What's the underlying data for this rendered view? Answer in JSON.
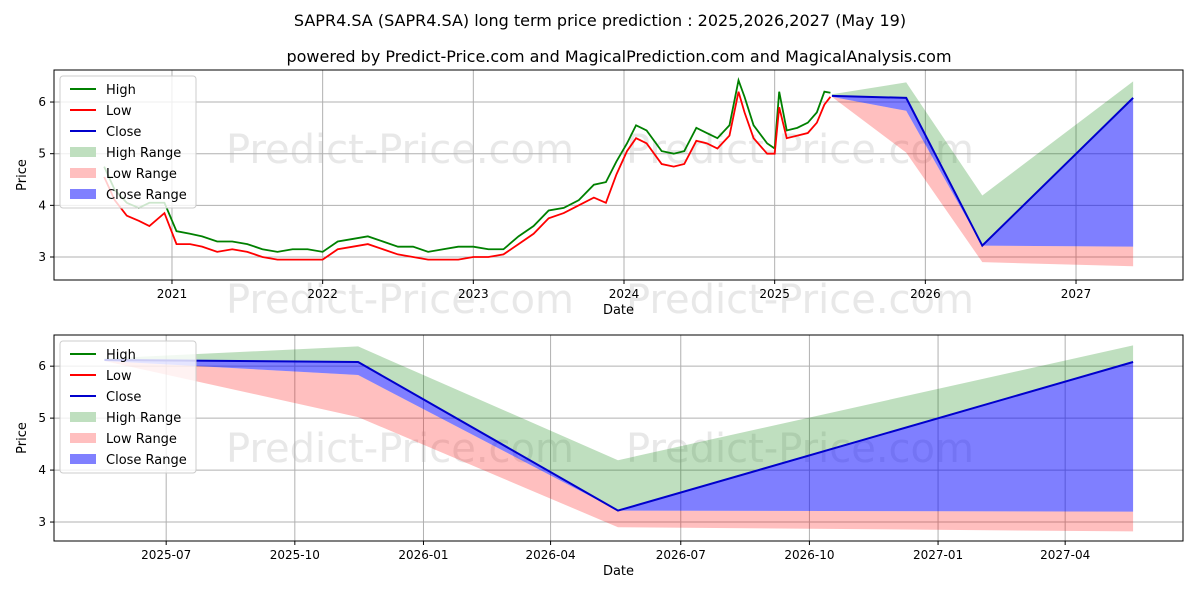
{
  "chart_data": [
    {
      "type": "line",
      "title": "SAPR4.SA (SAPR4.SA) long term price prediction : 2025,2026,2027 (May 19)",
      "subtitle": "powered by Predict-Price.com and MagicalPrediction.com and MagicalAnalysis.com",
      "xlabel": "Date",
      "ylabel": "Price",
      "xlim": [
        2020.217,
        2027.71
      ],
      "ylim": [
        2.555,
        6.62
      ],
      "xticks": [
        {
          "v": 2021,
          "label": "2021"
        },
        {
          "v": 2022,
          "label": "2022"
        },
        {
          "v": 2023,
          "label": "2023"
        },
        {
          "v": 2024,
          "label": "2024"
        },
        {
          "v": 2025,
          "label": "2025"
        },
        {
          "v": 2026,
          "label": "2026"
        },
        {
          "v": 2027,
          "label": "2027"
        }
      ],
      "yticks": [
        {
          "v": 3,
          "label": "3"
        },
        {
          "v": 4,
          "label": "4"
        },
        {
          "v": 5,
          "label": "5"
        },
        {
          "v": 6,
          "label": "6"
        }
      ],
      "grid": true,
      "legend": "top-left",
      "watermark": "Predict-Price.com"
    },
    {
      "type": "line",
      "xlabel": "Date",
      "ylabel": "Price",
      "xlim": [
        2025.282,
        2027.476
      ],
      "ylim": [
        2.635,
        6.6
      ],
      "xticks": [
        {
          "v": 2025.5,
          "label": "2025-07"
        },
        {
          "v": 2025.75,
          "label": "2025-10"
        },
        {
          "v": 2026.0,
          "label": "2026-01"
        },
        {
          "v": 2026.247,
          "label": "2026-04"
        },
        {
          "v": 2026.5,
          "label": "2026-07"
        },
        {
          "v": 2026.75,
          "label": "2026-10"
        },
        {
          "v": 2027.0,
          "label": "2027-01"
        },
        {
          "v": 2027.247,
          "label": "2027-04"
        }
      ],
      "yticks": [
        {
          "v": 3,
          "label": "3"
        },
        {
          "v": 4,
          "label": "4"
        },
        {
          "v": 5,
          "label": "5"
        },
        {
          "v": 6,
          "label": "6"
        }
      ],
      "grid": true,
      "legend": "top-left",
      "watermark": "Predict-Price.com"
    }
  ],
  "legend": [
    {
      "name": "High",
      "kind": "line",
      "color": "#008000"
    },
    {
      "name": "Low",
      "kind": "line",
      "color": "#ff0000"
    },
    {
      "name": "Close",
      "kind": "line",
      "color": "#0000cc"
    },
    {
      "name": "High Range",
      "kind": "patch",
      "color": "#bfdfbf"
    },
    {
      "name": "Low Range",
      "kind": "patch",
      "color": "#ffbfbf"
    },
    {
      "name": "Close Range",
      "kind": "patch",
      "color": "#8080ff"
    }
  ],
  "history": {
    "x": [
      2020.55,
      2020.62,
      2020.7,
      2020.78,
      2020.85,
      2020.95,
      2021.03,
      2021.12,
      2021.2,
      2021.3,
      2021.4,
      2021.5,
      2021.6,
      2021.7,
      2021.8,
      2021.9,
      2022.0,
      2022.1,
      2022.2,
      2022.3,
      2022.4,
      2022.5,
      2022.6,
      2022.7,
      2022.8,
      2022.9,
      2023.0,
      2023.1,
      2023.2,
      2023.3,
      2023.4,
      2023.5,
      2023.6,
      2023.7,
      2023.8,
      2023.88,
      2023.95,
      2024.02,
      2024.08,
      2024.15,
      2024.25,
      2024.33,
      2024.4,
      2024.48,
      2024.55,
      2024.62,
      2024.7,
      2024.76,
      2024.8,
      2024.86,
      2024.95,
      2025.0,
      2025.03,
      2025.08,
      2025.15,
      2025.22,
      2025.28,
      2025.33,
      2025.37
    ],
    "high": [
      4.75,
      4.3,
      4.05,
      3.95,
      4.05,
      4.05,
      3.5,
      3.45,
      3.4,
      3.3,
      3.3,
      3.25,
      3.15,
      3.1,
      3.15,
      3.15,
      3.1,
      3.3,
      3.35,
      3.4,
      3.3,
      3.2,
      3.2,
      3.1,
      3.15,
      3.2,
      3.2,
      3.15,
      3.15,
      3.4,
      3.6,
      3.9,
      3.95,
      4.1,
      4.4,
      4.45,
      4.85,
      5.2,
      5.55,
      5.45,
      5.05,
      5.0,
      5.05,
      5.5,
      5.4,
      5.3,
      5.55,
      6.42,
      6.1,
      5.55,
      5.2,
      5.1,
      6.2,
      5.45,
      5.5,
      5.6,
      5.8,
      6.2,
      6.18
    ],
    "low": [
      4.55,
      4.1,
      3.8,
      3.7,
      3.6,
      3.85,
      3.25,
      3.25,
      3.2,
      3.1,
      3.15,
      3.1,
      3.0,
      2.95,
      2.95,
      2.95,
      2.95,
      3.15,
      3.2,
      3.25,
      3.15,
      3.05,
      3.0,
      2.95,
      2.95,
      2.95,
      3.0,
      3.0,
      3.05,
      3.25,
      3.45,
      3.75,
      3.85,
      4.0,
      4.15,
      4.05,
      4.6,
      5.05,
      5.3,
      5.2,
      4.8,
      4.75,
      4.8,
      5.25,
      5.2,
      5.1,
      5.35,
      6.2,
      5.8,
      5.3,
      5.0,
      5.0,
      5.9,
      5.3,
      5.35,
      5.4,
      5.6,
      5.95,
      6.1
    ]
  },
  "forecast": {
    "x": [
      2025.38,
      2025.873,
      2026.378,
      2027.379
    ],
    "close": [
      6.12,
      6.08,
      3.22,
      6.08
    ],
    "high_upper": [
      6.15,
      6.38,
      4.19,
      6.4
    ],
    "close_lower": [
      6.1,
      5.83,
      3.22,
      3.2
    ],
    "low_lower": [
      6.1,
      5.02,
      2.9,
      2.82
    ]
  }
}
